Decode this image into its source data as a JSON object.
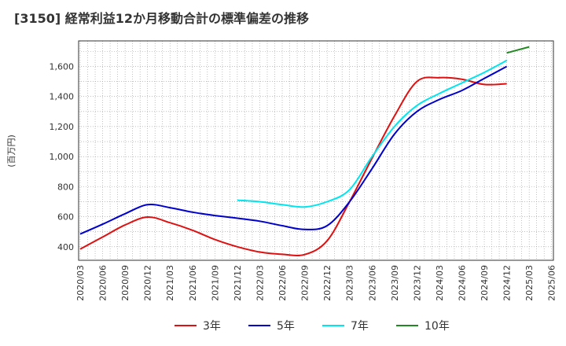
{
  "chart_data": {
    "type": "line",
    "title": "[3150]  経常利益12か月移動合計の標準偏差の推移",
    "ylabel": "(百万円)",
    "xlabel": "",
    "x": [
      "2020/03",
      "2020/06",
      "2020/09",
      "2020/12",
      "2021/03",
      "2021/06",
      "2021/09",
      "2021/12",
      "2022/03",
      "2022/06",
      "2022/09",
      "2022/12",
      "2023/03",
      "2023/06",
      "2023/09",
      "2023/12",
      "2024/03",
      "2024/06",
      "2024/09",
      "2024/12",
      "2025/03"
    ],
    "x_ticks": [
      "2020/03",
      "2020/06",
      "2020/09",
      "2020/12",
      "2021/03",
      "2021/06",
      "2021/09",
      "2021/12",
      "2022/03",
      "2022/06",
      "2022/09",
      "2022/12",
      "2023/03",
      "2023/06",
      "2023/09",
      "2023/12",
      "2024/03",
      "2024/06",
      "2024/09",
      "2024/12",
      "2025/03",
      "2025/06"
    ],
    "y_ticks": [
      "400",
      "600",
      "800",
      "1,000",
      "1,200",
      "1,400",
      "1,600"
    ],
    "ylim": [
      310,
      1770
    ],
    "grid": true,
    "legend_position": "bottom",
    "series": [
      {
        "name": "3年",
        "color": "#dd1111",
        "values": [
          385,
          465,
          545,
          598,
          560,
          510,
          448,
          400,
          365,
          350,
          348,
          440,
          700,
          990,
          1270,
          1500,
          1525,
          1515,
          1480,
          1485,
          null
        ]
      },
      {
        "name": "5年",
        "color": "#0000cc",
        "values": [
          485,
          550,
          620,
          680,
          660,
          630,
          608,
          590,
          570,
          540,
          515,
          540,
          700,
          920,
          1150,
          1300,
          1380,
          1440,
          1520,
          1600,
          null
        ]
      },
      {
        "name": "7年",
        "color": "#00e5ee",
        "values": [
          null,
          null,
          null,
          null,
          null,
          null,
          null,
          710,
          700,
          680,
          665,
          700,
          780,
          1000,
          1200,
          1340,
          1420,
          1490,
          1560,
          1640,
          null
        ]
      },
      {
        "name": "10年",
        "color": "#228822",
        "values": [
          null,
          null,
          null,
          null,
          null,
          null,
          null,
          null,
          null,
          null,
          null,
          null,
          null,
          null,
          null,
          null,
          null,
          null,
          null,
          1690,
          1730
        ]
      }
    ],
    "series_x_index": [
      [
        0,
        1,
        2,
        3,
        4,
        5,
        6,
        7,
        8,
        9,
        10,
        11,
        12,
        13,
        14,
        15,
        16,
        17,
        18,
        19
      ],
      [
        0,
        1,
        2,
        3,
        4,
        5,
        6,
        7,
        8,
        9,
        10,
        11,
        12,
        13,
        14,
        15,
        16,
        17,
        18,
        19
      ],
      [
        0,
        1,
        2,
        3,
        4,
        5,
        6,
        7,
        8,
        9,
        10,
        11,
        12,
        13,
        14,
        15,
        16,
        17,
        18,
        19
      ],
      [
        0,
        1,
        2,
        3,
        4,
        5,
        6,
        7,
        8,
        9,
        10,
        11,
        12,
        13,
        14,
        15,
        16,
        17,
        18,
        19,
        20
      ]
    ]
  }
}
